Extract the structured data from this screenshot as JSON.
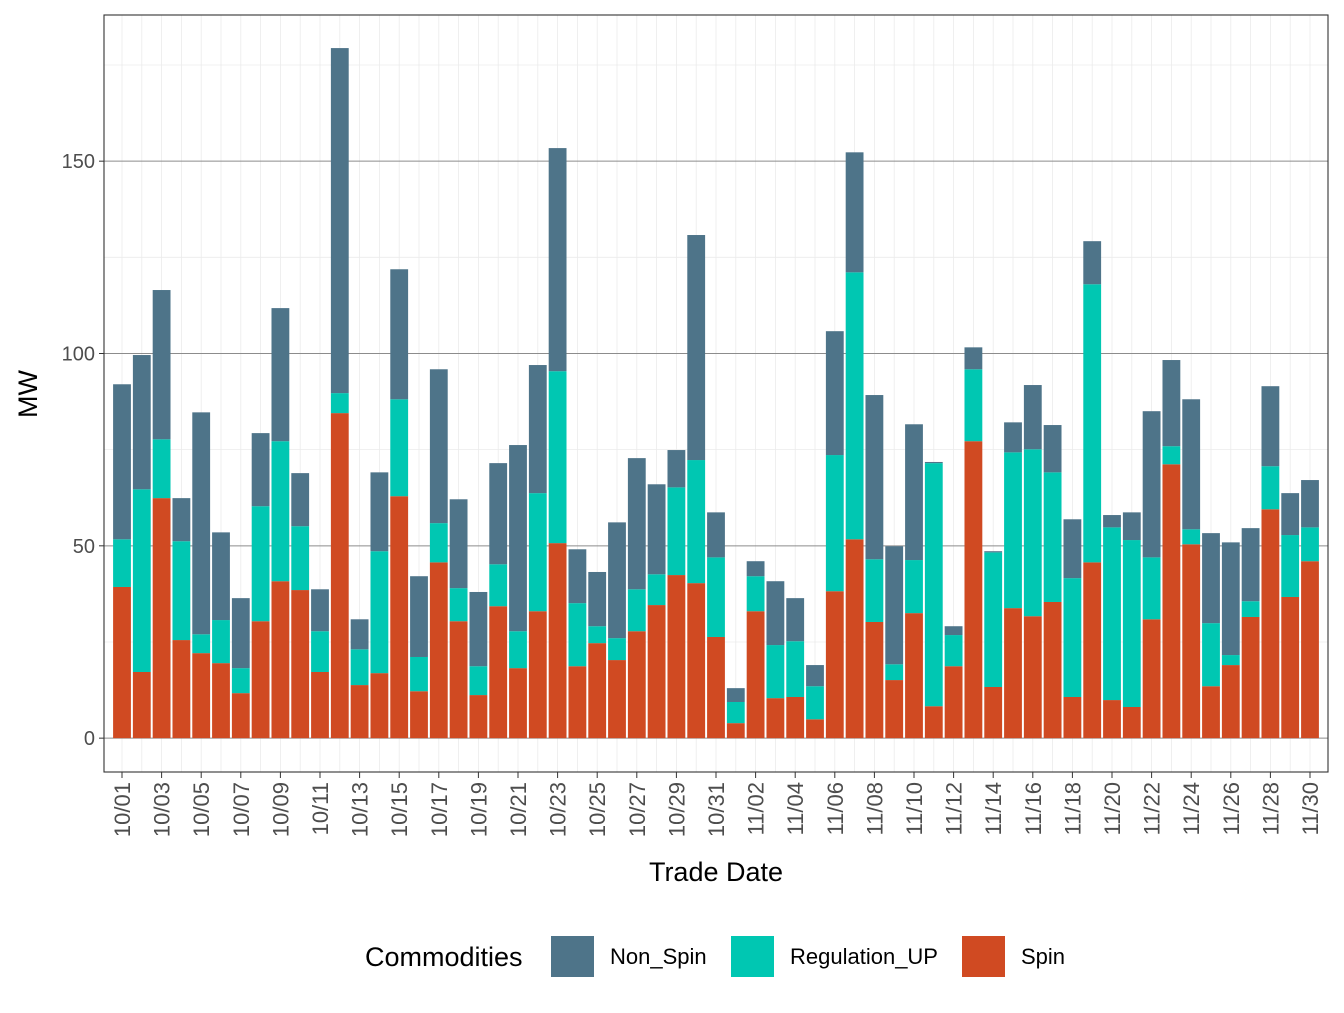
{
  "chart_data": {
    "type": "bar",
    "stacked": true,
    "xlabel": "Trade Date",
    "ylabel": "MW",
    "ylim": [
      -8.8,
      188
    ],
    "yticks": [
      0,
      50,
      100,
      150
    ],
    "grid": true,
    "legend": {
      "title": "Commodities",
      "position": "bottom"
    },
    "categories": [
      "10/01",
      "10/02",
      "10/03",
      "10/04",
      "10/05",
      "10/06",
      "10/07",
      "10/08",
      "10/09",
      "10/10",
      "10/11",
      "10/12",
      "10/13",
      "10/14",
      "10/15",
      "10/16",
      "10/17",
      "10/18",
      "10/19",
      "10/20",
      "10/21",
      "10/22",
      "10/23",
      "10/24",
      "10/25",
      "10/26",
      "10/27",
      "10/28",
      "10/29",
      "10/30",
      "10/31",
      "11/01",
      "11/02",
      "11/03",
      "11/04",
      "11/05",
      "11/06",
      "11/07",
      "11/08",
      "11/09",
      "11/10",
      "11/11",
      "11/12",
      "11/13",
      "11/14",
      "11/15",
      "11/16",
      "11/17",
      "11/18",
      "11/19",
      "11/20",
      "11/21",
      "11/22",
      "11/23",
      "11/24",
      "11/25",
      "11/26",
      "11/27",
      "11/28",
      "11/29",
      "11/30"
    ],
    "series": [
      {
        "name": "Spin",
        "color": "#D04A22",
        "values": [
          39.3,
          17.2,
          62.4,
          25.5,
          22.1,
          19.5,
          11.7,
          30.4,
          40.8,
          38.5,
          17.2,
          84.5,
          13.8,
          16.9,
          62.9,
          12.2,
          45.7,
          30.4,
          11.2,
          34.3,
          18.2,
          33.0,
          50.7,
          18.7,
          24.7,
          20.3,
          27.8,
          34.6,
          42.4,
          40.3,
          26.3,
          3.9,
          33.0,
          10.4,
          10.7,
          4.9,
          38.2,
          51.7,
          30.2,
          15.1,
          32.5,
          8.3,
          18.7,
          77.2,
          13.3,
          33.8,
          31.7,
          35.4,
          10.7,
          45.7,
          9.9,
          8.1,
          30.9,
          71.2,
          50.4,
          13.5,
          19.0,
          31.5,
          59.5,
          36.7,
          46.0
        ]
      },
      {
        "name": "Regulation_UP",
        "color": "#00C7B2",
        "values": [
          12.4,
          47.5,
          15.3,
          25.7,
          4.9,
          11.2,
          6.5,
          29.9,
          36.4,
          16.6,
          10.6,
          5.2,
          9.3,
          31.7,
          25.2,
          8.9,
          10.2,
          8.6,
          7.5,
          10.9,
          9.6,
          30.7,
          44.7,
          16.4,
          4.4,
          5.7,
          10.9,
          8.0,
          22.8,
          32.0,
          20.7,
          5.5,
          9.1,
          13.8,
          14.5,
          8.6,
          35.4,
          69.4,
          16.3,
          4.1,
          13.8,
          63.2,
          8.1,
          18.7,
          35.0,
          40.5,
          43.4,
          33.7,
          30.9,
          72.3,
          44.9,
          43.4,
          16.1,
          4.7,
          3.9,
          16.4,
          2.6,
          4.1,
          11.2,
          16.1,
          8.8
        ]
      },
      {
        "name": "Non_Spin",
        "color": "#4E7489",
        "values": [
          40.3,
          34.9,
          38.8,
          11.2,
          57.7,
          22.8,
          18.2,
          19.0,
          34.6,
          13.8,
          10.9,
          89.7,
          7.8,
          20.5,
          33.8,
          21.0,
          40.0,
          23.1,
          19.3,
          26.3,
          48.4,
          33.3,
          58.0,
          14.0,
          14.1,
          30.1,
          34.1,
          23.4,
          9.7,
          58.5,
          11.7,
          3.6,
          3.9,
          16.6,
          11.2,
          5.5,
          32.2,
          31.2,
          42.7,
          30.7,
          35.3,
          0.3,
          2.3,
          5.7,
          0.3,
          7.8,
          16.7,
          12.3,
          15.3,
          11.2,
          3.2,
          7.2,
          38.0,
          22.4,
          33.8,
          23.4,
          29.3,
          19.0,
          20.8,
          10.9,
          12.3
        ]
      }
    ],
    "legend_order": [
      "Non_Spin",
      "Regulation_UP",
      "Spin"
    ]
  }
}
